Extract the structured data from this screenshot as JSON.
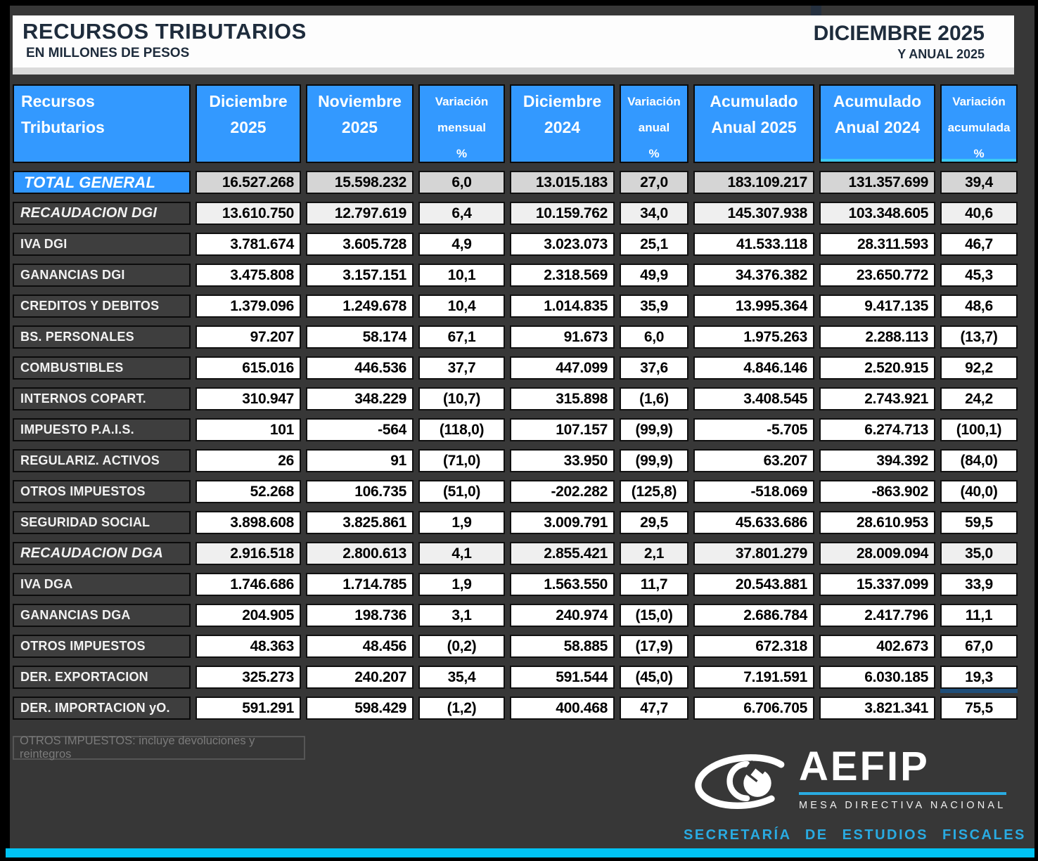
{
  "header": {
    "title": "RECURSOS TRIBUTARIOS",
    "subtitle": "EN MILLONES DE PESOS",
    "period_title": "DICIEMBRE 2025",
    "period_subtitle": "Y ANUAL 2025"
  },
  "table": {
    "columns": [
      "Recursos\nTributarios",
      "Diciembre\n2025",
      "Noviembre\n2025",
      "Variación\nmensual\n%",
      "Diciembre\n2024",
      "Variación\nanual\n%",
      "Acumulado\nAnual 2025",
      "Acumulado\nAnual 2024",
      "Variación\nacumulada\n%"
    ],
    "rows": [
      {
        "label": "TOTAL GENERAL",
        "style": "total",
        "values": [
          "16.527.268",
          "15.598.232",
          "6,0",
          "13.015.183",
          "27,0",
          "183.109.217",
          "131.357.699",
          "39,4"
        ]
      },
      {
        "label": "RECAUDACION DGI",
        "style": "section",
        "values": [
          "13.610.750",
          "12.797.619",
          "6,4",
          "10.159.762",
          "34,0",
          "145.307.938",
          "103.348.605",
          "40,6"
        ]
      },
      {
        "label": "IVA DGI",
        "style": "normal",
        "values": [
          "3.781.674",
          "3.605.728",
          "4,9",
          "3.023.073",
          "25,1",
          "41.533.118",
          "28.311.593",
          "46,7"
        ]
      },
      {
        "label": "GANANCIAS DGI",
        "style": "normal",
        "values": [
          "3.475.808",
          "3.157.151",
          "10,1",
          "2.318.569",
          "49,9",
          "34.376.382",
          "23.650.772",
          "45,3"
        ]
      },
      {
        "label": "CREDITOS Y DEBITOS",
        "style": "normal",
        "values": [
          "1.379.096",
          "1.249.678",
          "10,4",
          "1.014.835",
          "35,9",
          "13.995.364",
          "9.417.135",
          "48,6"
        ]
      },
      {
        "label": "BS. PERSONALES",
        "style": "normal",
        "values": [
          "97.207",
          "58.174",
          "67,1",
          "91.673",
          "6,0",
          "1.975.263",
          "2.288.113",
          "(13,7)"
        ]
      },
      {
        "label": "COMBUSTIBLES",
        "style": "normal",
        "values": [
          "615.016",
          "446.536",
          "37,7",
          "447.099",
          "37,6",
          "4.846.146",
          "2.520.915",
          "92,2"
        ]
      },
      {
        "label": "INTERNOS COPART.",
        "style": "normal",
        "values": [
          "310.947",
          "348.229",
          "(10,7)",
          "315.898",
          "(1,6)",
          "3.408.545",
          "2.743.921",
          "24,2"
        ]
      },
      {
        "label": "IMPUESTO P.A.I.S.",
        "style": "normal",
        "values": [
          "101",
          "-564",
          "(118,0)",
          "107.157",
          "(99,9)",
          "-5.705",
          "6.274.713",
          "(100,1)"
        ]
      },
      {
        "label": "REGULARIZ. ACTIVOS",
        "style": "normal",
        "values": [
          "26",
          "91",
          "(71,0)",
          "33.950",
          "(99,9)",
          "63.207",
          "394.392",
          "(84,0)"
        ]
      },
      {
        "label": "OTROS IMPUESTOS",
        "style": "normal",
        "values": [
          "52.268",
          "106.735",
          "(51,0)",
          "-202.282",
          "(125,8)",
          "-518.069",
          "-863.902",
          "(40,0)"
        ]
      },
      {
        "label": "SEGURIDAD SOCIAL",
        "style": "normal",
        "values": [
          "3.898.608",
          "3.825.861",
          "1,9",
          "3.009.791",
          "29,5",
          "45.633.686",
          "28.610.953",
          "59,5"
        ]
      },
      {
        "label": "RECAUDACION DGA",
        "style": "section",
        "values": [
          "2.916.518",
          "2.800.613",
          "4,1",
          "2.855.421",
          "2,1",
          "37.801.279",
          "28.009.094",
          "35,0"
        ]
      },
      {
        "label": "IVA DGA",
        "style": "normal",
        "values": [
          "1.746.686",
          "1.714.785",
          "1,9",
          "1.563.550",
          "11,7",
          "20.543.881",
          "15.337.099",
          "33,9"
        ]
      },
      {
        "label": "GANANCIAS DGA",
        "style": "normal",
        "values": [
          "204.905",
          "198.736",
          "3,1",
          "240.974",
          "(15,0)",
          "2.686.784",
          "2.417.796",
          "11,1"
        ]
      },
      {
        "label": "OTROS IMPUESTOS",
        "style": "normal",
        "values": [
          "48.363",
          "48.456",
          "(0,2)",
          "58.885",
          "(17,9)",
          "672.318",
          "402.673",
          "67,0"
        ]
      },
      {
        "label": "DER. EXPORTACION",
        "style": "normal",
        "values": [
          "325.273",
          "240.207",
          "35,4",
          "591.544",
          "(45,0)",
          "7.191.591",
          "6.030.185",
          "19,3"
        ]
      },
      {
        "label": "DER. IMPORTACION yO.",
        "style": "normal",
        "values": [
          "591.291",
          "598.429",
          "(1,2)",
          "400.468",
          "47,7",
          "6.706.705",
          "3.821.341",
          "75,5"
        ]
      }
    ]
  },
  "footnote": "OTROS IMPUESTOS: incluye devoluciones y reintegros",
  "logo": {
    "name": "AEFIP",
    "line1": "MESA DIRECTIVA NACIONAL",
    "line2": "SECRETARÍA DE ESTUDIOS FISCALES"
  },
  "colors": {
    "header_blue": "#3399ff",
    "row_gray_total": "#d5d5d5",
    "row_gray_section": "#efefef",
    "cyan_bar": "#00c3f4",
    "accent_cyan": "#29abe2",
    "navy_accent": "#1f4e79",
    "title_text": "#1e2c3c"
  }
}
